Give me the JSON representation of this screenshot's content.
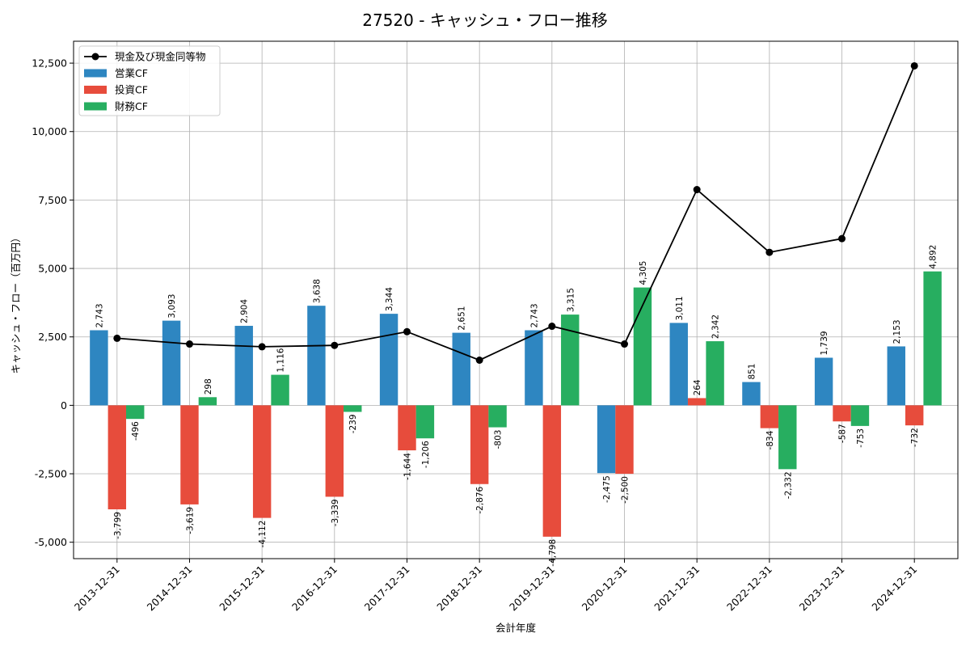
{
  "chart_data": {
    "type": "bar",
    "title": "27520 - キャッシュ・フロー推移",
    "xlabel": "会計年度",
    "ylabel": "キャッシュ・フロー（百万円）",
    "categories": [
      "2013-12-31",
      "2014-12-31",
      "2015-12-31",
      "2016-12-31",
      "2017-12-31",
      "2018-12-31",
      "2019-12-31",
      "2020-12-31",
      "2021-12-31",
      "2022-12-31",
      "2023-12-31",
      "2024-12-31"
    ],
    "ylim": [
      -5600,
      13300
    ],
    "yticks": [
      -5000,
      -2500,
      0,
      2500,
      5000,
      7500,
      10000,
      12500
    ],
    "ytick_labels": [
      "-5,000",
      "-2,500",
      "0",
      "2,500",
      "5,000",
      "7,500",
      "10,000",
      "12,500"
    ],
    "grid": true,
    "legend_position": "top-left",
    "series": [
      {
        "name": "営業CF",
        "kind": "bar",
        "color": "#2e86c1",
        "values": [
          2743,
          3093,
          2904,
          3638,
          3344,
          2651,
          2743,
          -2475,
          3011,
          851,
          1739,
          2153
        ],
        "labels": [
          "2,743",
          "3,093",
          "2,904",
          "3,638",
          "3,344",
          "2,651",
          "2,743",
          "-2,475",
          "3,011",
          "851",
          "1,739",
          "2,153"
        ]
      },
      {
        "name": "投資CF",
        "kind": "bar",
        "color": "#e74c3c",
        "values": [
          -3799,
          -3619,
          -4112,
          -3339,
          -1644,
          -2876,
          -4798,
          -2500,
          264,
          -834,
          -587,
          -732
        ],
        "labels": [
          "-3,799",
          "-3,619",
          "-4,112",
          "-3,339",
          "-1,644",
          "-2,876",
          "-4,798",
          "-2,500",
          "264",
          "-834",
          "-587",
          "-732"
        ]
      },
      {
        "name": "財務CF",
        "kind": "bar",
        "color": "#27ae60",
        "values": [
          -496,
          298,
          1116,
          -239,
          -1206,
          -803,
          3315,
          4305,
          2342,
          -2332,
          -753,
          4892
        ],
        "labels": [
          "-496",
          "298",
          "1,116",
          "-239",
          "-1,206",
          "-803",
          "3,315",
          "4,305",
          "2,342",
          "-2,332",
          "-753",
          "4,892"
        ]
      },
      {
        "name": "現金及び現金同等物",
        "kind": "line",
        "color": "#000000",
        "values": [
          2450,
          2240,
          2140,
          2190,
          2690,
          1650,
          2890,
          2240,
          7880,
          5590,
          6090,
          12400
        ]
      }
    ]
  }
}
